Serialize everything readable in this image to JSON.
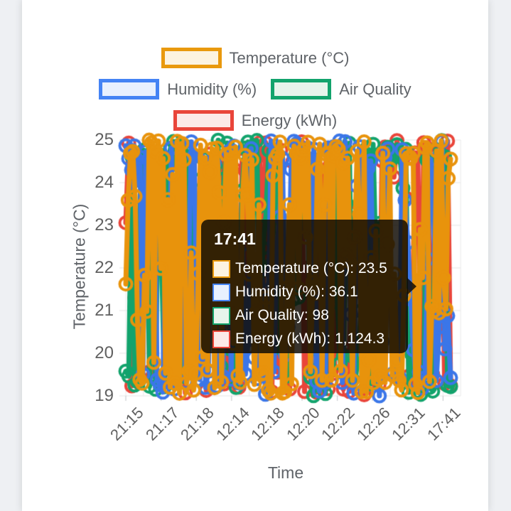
{
  "page": {
    "background": "#eef0f3",
    "card_background": "#ffffff"
  },
  "legend": {
    "items": [
      {
        "label": "Temperature (°C)",
        "border": "#E9990D",
        "fill": "#FCF3E0"
      },
      {
        "label": "Humidity (%)",
        "border": "#4483F4",
        "fill": "#E8F0FE"
      },
      {
        "label": "Air Quality",
        "border": "#12A36C",
        "fill": "#E6F4EB"
      },
      {
        "label": "Energy (kWh)",
        "border": "#E9453A",
        "fill": "#FCE9E7"
      }
    ]
  },
  "tooltip": {
    "title": "17:41",
    "items": [
      {
        "text": "Temperature (°C): 23.5",
        "border": "#E9990D",
        "fill": "#FCF3E0"
      },
      {
        "text": "Humidity (%): 36.1",
        "border": "#4483F4",
        "fill": "#E8F0FE"
      },
      {
        "text": "Air Quality: 98",
        "border": "#12A36C",
        "fill": "#E6F4EB"
      },
      {
        "text": "Energy (kWh): 1,124.3",
        "border": "#E9453A",
        "fill": "#FCE9E7"
      }
    ]
  },
  "chart_data": {
    "type": "line",
    "title": "",
    "xlabel": "Time",
    "ylabel": "Temperature (°C)",
    "ylim": [
      19,
      25
    ],
    "y_ticks": [
      25,
      24,
      23,
      22,
      21,
      20,
      19
    ],
    "y_tick_labels": [
      "25",
      "24",
      "23",
      "22",
      "21",
      "20",
      "19"
    ],
    "x_tick_labels": [
      "21:15",
      "21:17",
      "21:18",
      "12:14",
      "12:18",
      "12:20",
      "12:22",
      "12:26",
      "12:31",
      "17:41"
    ],
    "grid": true,
    "legend_position": "top",
    "marker_style": "hollow-circle",
    "series": [
      {
        "name": "Energy (kWh)",
        "color": "#E9453A",
        "points": 110
      },
      {
        "name": "Air Quality",
        "color": "#12A36C",
        "points": 110
      },
      {
        "name": "Humidity (%)",
        "color": "#3B76E8",
        "points": 115
      },
      {
        "name": "Temperature (°C)",
        "color": "#E8930C",
        "points": 140
      }
    ],
    "seed": 20240517,
    "note": "All four series oscillate densely across the full 19-25 axis range; individual point values are not legible.",
    "tooltip_snapshot": {
      "time": "17:41",
      "temperature_c": 23.5,
      "humidity_pct": 36.1,
      "air_quality": 98,
      "energy_kwh": "1,124.3"
    }
  }
}
